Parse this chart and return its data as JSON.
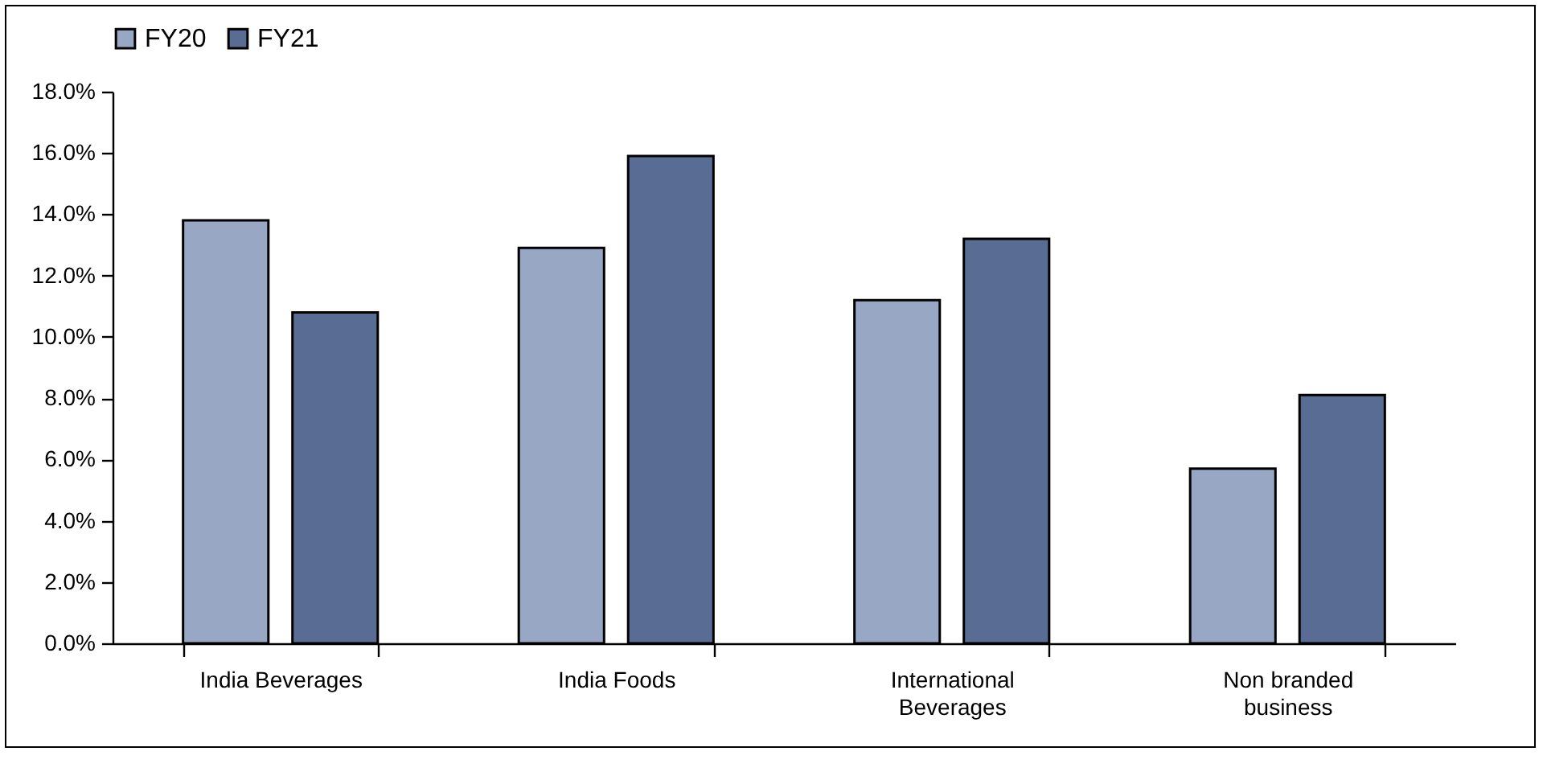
{
  "chart_data": {
    "type": "bar",
    "categories": [
      "India Beverages",
      "India Foods",
      "International Beverages",
      "Non branded business"
    ],
    "series": [
      {
        "name": "FY20",
        "color": "#97a7c4",
        "values": [
          13.8,
          12.9,
          11.2,
          5.7
        ]
      },
      {
        "name": "FY21",
        "color": "#586c94",
        "values": [
          10.8,
          15.9,
          13.2,
          8.1
        ]
      }
    ],
    "ylim": [
      0,
      18
    ],
    "yticks": [
      {
        "value": 0,
        "label": "0.0%"
      },
      {
        "value": 2,
        "label": "2.0%"
      },
      {
        "value": 4,
        "label": "4.0%"
      },
      {
        "value": 6,
        "label": "6.0%"
      },
      {
        "value": 8,
        "label": "8.0%"
      },
      {
        "value": 10,
        "label": "10.0%"
      },
      {
        "value": 12,
        "label": "12.0%"
      },
      {
        "value": 14,
        "label": "14.0%"
      },
      {
        "value": 16,
        "label": "16.0%"
      },
      {
        "value": 18,
        "label": "18.0%"
      }
    ],
    "grid": false,
    "legend": "top"
  }
}
